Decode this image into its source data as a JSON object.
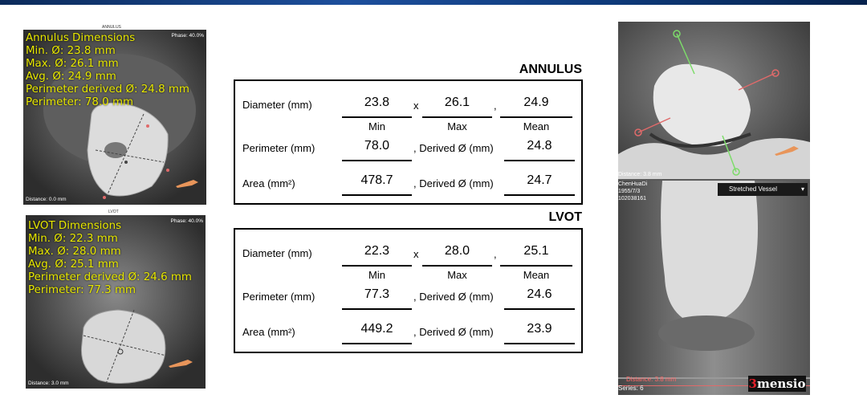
{
  "annulus_panel": {
    "title": "ANNULUS",
    "phase": "Phase: 40.0%",
    "distance": "Distance: 0.0 mm",
    "lines": [
      "Annulus Dimensions",
      "Min. Ø: 23.8 mm",
      "Max. Ø: 26.1 mm",
      "Avg. Ø: 24.9 mm",
      "Perimeter derived Ø: 24.8 mm",
      "Perimeter: 78.0 mm"
    ]
  },
  "lvot_panel": {
    "title": "LVOT",
    "phase": "Phase: 40.0%",
    "distance": "Distance: 3.0 mm",
    "lines": [
      "LVOT Dimensions",
      "Min. Ø: 22.3 mm",
      "Max. Ø: 28.0 mm",
      "Avg. Ø: 25.1 mm",
      "Perimeter derived Ø: 24.6 mm",
      "Perimeter: 77.3 mm"
    ]
  },
  "annulus_table": {
    "heading": "ANNULUS",
    "diameter_label": "Diameter (mm)",
    "min": "23.8",
    "max": "26.1",
    "mean": "24.9",
    "x_sep": "x",
    "comma_sep": ",",
    "min_caption": "Min",
    "max_caption": "Max",
    "mean_caption": "Mean",
    "perimeter_label": "Perimeter (mm)",
    "perimeter": "78.0",
    "derived_label": ", Derived Ø (mm)",
    "perimeter_derived": "24.8",
    "area_label": "Area (mm²)",
    "area": "478.7",
    "area_derived": "24.7"
  },
  "lvot_table": {
    "heading": "LVOT",
    "diameter_label": "Diameter (mm)",
    "min": "22.3",
    "max": "28.0",
    "mean": "25.1",
    "x_sep": "x",
    "comma_sep": ",",
    "min_caption": "Min",
    "max_caption": "Max",
    "mean_caption": "Mean",
    "perimeter_label": "Perimeter (mm)",
    "perimeter": "77.3",
    "derived_label": ", Derived Ø (mm)",
    "perimeter_derived": "24.6",
    "area_label": "Area (mm²)",
    "area": "449.2",
    "area_derived": "23.9"
  },
  "right_view": {
    "distance_top": "Distance: 3.8 mm",
    "patient_name": "ChenHuaDi",
    "dob": "1955/7/3",
    "patient_id": "102038161",
    "view_select": "Stretched Vessel",
    "distance_bottom": "Distance: 3.8 mm",
    "series": "Series: 6",
    "logo_digit": "3",
    "logo_word": "mensio"
  },
  "colors": {
    "overlay_text": "#e8e800",
    "logo_accent": "#e0202a",
    "marker_green": "#7ddc6a",
    "marker_red": "#e06a6a"
  }
}
